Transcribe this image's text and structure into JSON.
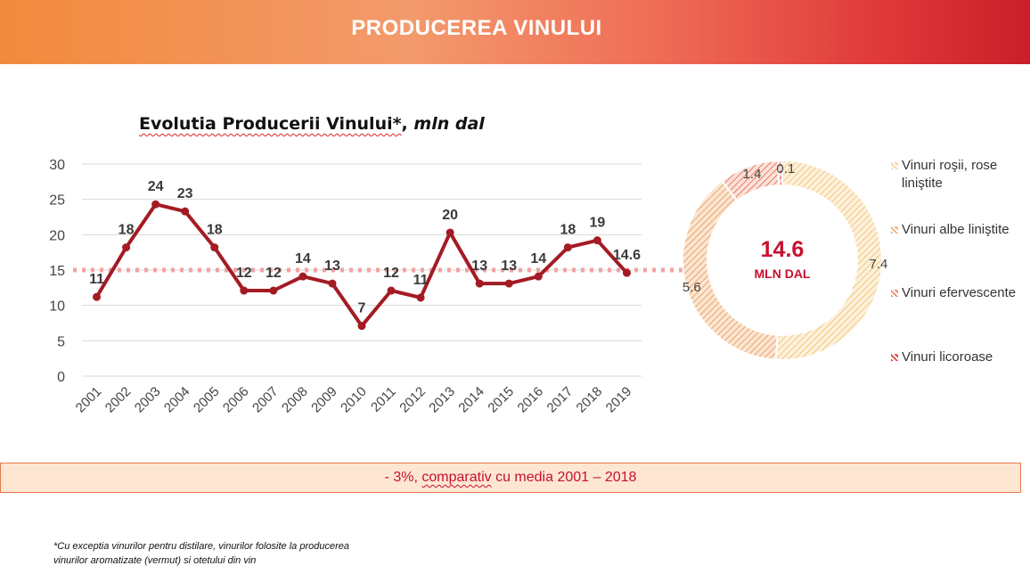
{
  "header": {
    "title": "PRODUCEREA VINULUI"
  },
  "chart_data": [
    {
      "type": "line",
      "title": "Evolutia Producerii Vinului*",
      "title_unit": "mln dal",
      "x": [
        "2001",
        "2002",
        "2003",
        "2004",
        "2005",
        "2006",
        "2007",
        "2008",
        "2009",
        "2010",
        "2011",
        "2012",
        "2013",
        "2014",
        "2015",
        "2016",
        "2017",
        "2018",
        "2019"
      ],
      "values": [
        11.2,
        18.2,
        24.3,
        23.3,
        18.2,
        12.1,
        12.1,
        14.1,
        13.1,
        7.1,
        12.1,
        11.1,
        20.3,
        13.1,
        13.1,
        14.1,
        18.2,
        19.2,
        14.6
      ],
      "data_labels": [
        "11",
        "18",
        "24",
        "23",
        "18",
        "12",
        "12",
        "14",
        "13",
        "7",
        "12",
        "11",
        "20",
        "13",
        "13",
        "14",
        "18",
        "19",
        "14.6"
      ],
      "ylim": [
        0,
        30
      ],
      "y_ticks": [
        "0",
        "5",
        "10",
        "15",
        "20",
        "25",
        "30"
      ],
      "reference_line": {
        "value": 15,
        "style": "dotted"
      },
      "colors": {
        "line": "#a31b23",
        "reference": "#f2a3a3",
        "grid": "#d9d9d9"
      }
    },
    {
      "type": "pie",
      "subtype": "donut",
      "slices": [
        {
          "label": "Vinuri roşii, rose liniştite",
          "value": 7.4,
          "display": "7.4",
          "color": "#f7d49a"
        },
        {
          "label": "Vinuri albe liniştite",
          "value": 5.6,
          "display": "5.6",
          "color": "#f0b07a"
        },
        {
          "label": "Vinuri efervescente",
          "value": 1.4,
          "display": "1.4",
          "color": "#ee8a6a"
        },
        {
          "label": "Vinuri licoroase",
          "value": 0.1,
          "display": "0.1",
          "color": "#e0453a"
        }
      ],
      "center_value": "14.6",
      "center_unit": "MLN DAL",
      "legend_position": "right"
    }
  ],
  "callout": {
    "prefix": "- 3%, ",
    "wavy_word": "comparativ",
    "suffix": " cu media  2001 – 2018"
  },
  "footnote": {
    "line1": "*Cu exceptia vinurilor pentru distilare, vinurilor folosite la producerea",
    "line2": "vinurilor aromatizate (vermut) si  otetului  din vin"
  }
}
